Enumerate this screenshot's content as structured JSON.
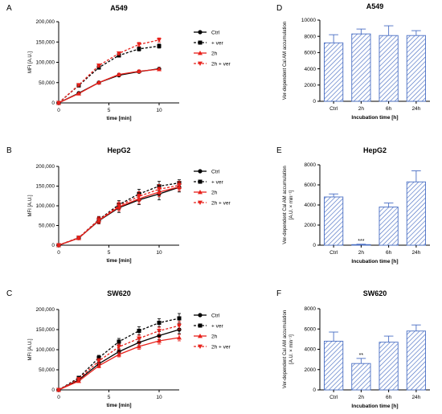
{
  "chart_data": [
    {
      "panel": "A",
      "type": "line",
      "title": "A549",
      "xlabel": "time [min]",
      "ylabel": "MFI [A.U.]",
      "xlim": [
        0,
        12
      ],
      "ylim": [
        0,
        200000
      ],
      "xticks": [
        0,
        5,
        10
      ],
      "yticks": [
        0,
        50000,
        100000,
        150000,
        200000
      ],
      "ytick_labels": [
        "0",
        "50,000",
        "100,000",
        "150,000",
        "200,000"
      ],
      "series": [
        {
          "name": "Ctrl",
          "color": "#000000",
          "dashed": false,
          "marker": "circle",
          "x": [
            0,
            2,
            4,
            6,
            8,
            10
          ],
          "y": [
            0,
            24000,
            50000,
            68000,
            77000,
            84000
          ],
          "err": [
            0,
            1500,
            2500,
            3000,
            3000,
            3000
          ]
        },
        {
          "name": "+ ver",
          "color": "#000000",
          "dashed": true,
          "marker": "square",
          "x": [
            0,
            2,
            4,
            6,
            8,
            10
          ],
          "y": [
            0,
            43000,
            87000,
            117000,
            133000,
            140000
          ],
          "err": [
            0,
            2500,
            4000,
            4000,
            5000,
            5000
          ]
        },
        {
          "name": "2h",
          "color": "#e8211b",
          "dashed": false,
          "marker": "triangle",
          "x": [
            0,
            2,
            4,
            6,
            8,
            10
          ],
          "y": [
            0,
            23000,
            50000,
            70000,
            78000,
            83000
          ],
          "err": [
            0,
            1500,
            2500,
            3000,
            3000,
            3000
          ]
        },
        {
          "name": "2h + ver",
          "color": "#e8211b",
          "dashed": true,
          "marker": "triangle-down",
          "x": [
            0,
            2,
            4,
            6,
            8,
            10
          ],
          "y": [
            0,
            44000,
            92000,
            122000,
            144000,
            155000
          ],
          "err": [
            0,
            2500,
            4000,
            4000,
            5000,
            5000
          ]
        }
      ]
    },
    {
      "panel": "B",
      "type": "line",
      "title": "HepG2",
      "xlabel": "time [min]",
      "ylabel": "MFI [A.U.]",
      "xlim": [
        0,
        12
      ],
      "ylim": [
        0,
        200000
      ],
      "xticks": [
        0,
        5,
        10
      ],
      "yticks": [
        0,
        50000,
        100000,
        150000,
        200000
      ],
      "ytick_labels": [
        "0",
        "50,000",
        "100,000",
        "150,000",
        "200,000"
      ],
      "series": [
        {
          "name": "Ctrl",
          "color": "#000000",
          "dashed": false,
          "marker": "circle",
          "x": [
            0,
            2,
            4,
            6,
            8,
            10,
            12
          ],
          "y": [
            0,
            18000,
            62000,
            95000,
            115000,
            130000,
            147000
          ],
          "err": [
            0,
            3000,
            8000,
            12000,
            12000,
            15000,
            12000
          ]
        },
        {
          "name": "+ ver",
          "color": "#000000",
          "dashed": true,
          "marker": "square",
          "x": [
            0,
            2,
            4,
            6,
            8,
            10,
            12
          ],
          "y": [
            0,
            19000,
            65000,
            103000,
            130000,
            150000,
            158000
          ],
          "err": [
            0,
            3000,
            8000,
            10000,
            12000,
            12000,
            8000
          ]
        },
        {
          "name": "2h",
          "color": "#e8211b",
          "dashed": false,
          "marker": "triangle",
          "x": [
            0,
            2,
            4,
            6,
            8,
            10,
            12
          ],
          "y": [
            0,
            18000,
            63000,
            97000,
            118000,
            135000,
            148000
          ],
          "err": [
            0,
            3000,
            8000,
            10000,
            12000,
            12000,
            10000
          ]
        },
        {
          "name": "2h + ver",
          "color": "#e8211b",
          "dashed": true,
          "marker": "triangle-down",
          "x": [
            0,
            2,
            4,
            6,
            8,
            10,
            12
          ],
          "y": [
            0,
            19000,
            64000,
            100000,
            124000,
            142000,
            152000
          ],
          "err": [
            0,
            3000,
            8000,
            10000,
            12000,
            12000,
            10000
          ]
        }
      ]
    },
    {
      "panel": "C",
      "type": "line",
      "title": "SW620",
      "xlabel": "time [min]",
      "ylabel": "MFI [A.U.]",
      "xlim": [
        0,
        12
      ],
      "ylim": [
        0,
        200000
      ],
      "xticks": [
        0,
        5,
        10
      ],
      "yticks": [
        0,
        50000,
        100000,
        150000,
        200000
      ],
      "ytick_labels": [
        "0",
        "50,000",
        "100,000",
        "150,000",
        "200,000"
      ],
      "series": [
        {
          "name": "Ctrl",
          "color": "#000000",
          "dashed": false,
          "marker": "circle",
          "x": [
            0,
            2,
            4,
            6,
            8,
            10,
            12
          ],
          "y": [
            0,
            25000,
            65000,
            95000,
            118000,
            135000,
            150000
          ],
          "err": [
            0,
            3000,
            5000,
            7000,
            8000,
            10000,
            10000
          ]
        },
        {
          "name": "+ ver",
          "color": "#000000",
          "dashed": true,
          "marker": "square",
          "x": [
            0,
            2,
            4,
            6,
            8,
            10,
            12
          ],
          "y": [
            0,
            30000,
            80000,
            120000,
            147000,
            167000,
            178000
          ],
          "err": [
            0,
            3000,
            6000,
            8000,
            10000,
            10000,
            12000
          ]
        },
        {
          "name": "2h",
          "color": "#e8211b",
          "dashed": false,
          "marker": "triangle",
          "x": [
            0,
            2,
            4,
            6,
            8,
            10,
            12
          ],
          "y": [
            0,
            22000,
            60000,
            88000,
            108000,
            122000,
            130000
          ],
          "err": [
            0,
            3000,
            5000,
            6000,
            7000,
            8000,
            8000
          ]
        },
        {
          "name": "2h + ver",
          "color": "#e8211b",
          "dashed": true,
          "marker": "triangle-down",
          "x": [
            0,
            2,
            4,
            6,
            8,
            10,
            12
          ],
          "y": [
            0,
            27000,
            72000,
            107000,
            128000,
            147000,
            160000
          ],
          "err": [
            0,
            3000,
            6000,
            7000,
            8000,
            9000,
            10000
          ]
        }
      ]
    },
    {
      "panel": "D",
      "type": "bar",
      "title": "A549",
      "xlabel": "Incubation time [h]",
      "ylabel": "Ver-dependent Cal AM accumulation",
      "ylabel2": "",
      "categories": [
        "Ctrl",
        "2h",
        "6h",
        "24h"
      ],
      "values": [
        7200,
        8300,
        8100,
        8100
      ],
      "err": [
        1000,
        600,
        1200,
        600
      ],
      "ylim": [
        0,
        10000
      ],
      "yticks": [
        0,
        2000,
        4000,
        6000,
        8000,
        10000
      ],
      "ytick_labels": [
        "0",
        "2000",
        "4000",
        "6000",
        "8000",
        "10000"
      ],
      "annotations": [
        "",
        "",
        "",
        ""
      ],
      "bar_color": "#4a6fc4"
    },
    {
      "panel": "E",
      "type": "bar",
      "title": "HepG2",
      "xlabel": "Incubation time [h]",
      "ylabel": "Ver-dependent Cal AM accumulation",
      "ylabel2": "[A.U. × min⁻¹]",
      "categories": [
        "Ctrl",
        "2h",
        "6h",
        "24h"
      ],
      "values": [
        4800,
        60,
        3800,
        6300
      ],
      "err": [
        300,
        40,
        400,
        1100
      ],
      "ylim": [
        0,
        8000
      ],
      "yticks": [
        0,
        2000,
        4000,
        6000,
        8000
      ],
      "ytick_labels": [
        "0",
        "2000",
        "4000",
        "6000",
        "8000"
      ],
      "annotations": [
        "",
        "***",
        "",
        ""
      ],
      "bar_color": "#4a6fc4"
    },
    {
      "panel": "F",
      "type": "bar",
      "title": "SW620",
      "xlabel": "Incubation time [h]",
      "ylabel": "Ver-dependent Cal AM accumulation",
      "ylabel2": "[A.U. × min⁻¹]",
      "categories": [
        "Ctrl",
        "2h",
        "6h",
        "24h"
      ],
      "values": [
        4800,
        2600,
        4700,
        5800
      ],
      "err": [
        900,
        500,
        600,
        600
      ],
      "ylim": [
        0,
        8000
      ],
      "yticks": [
        0,
        2000,
        4000,
        6000,
        8000
      ],
      "ytick_labels": [
        "0",
        "2000",
        "4000",
        "6000",
        "8000"
      ],
      "annotations": [
        "",
        "**",
        "",
        ""
      ],
      "bar_color": "#4a6fc4"
    }
  ]
}
